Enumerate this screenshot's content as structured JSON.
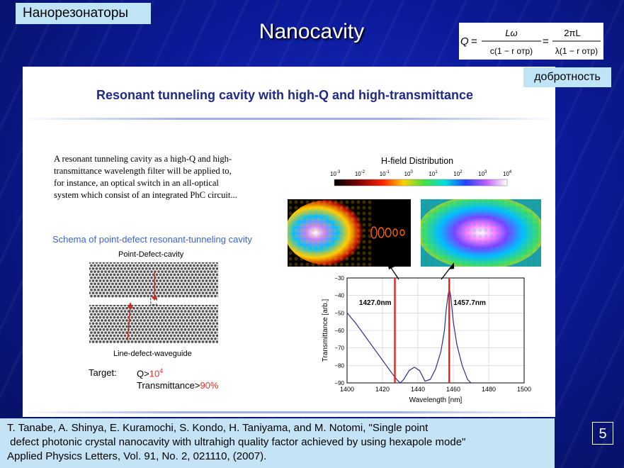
{
  "slide": {
    "label_ru": "Нанорезонаторы",
    "title": "Nanocavity",
    "q_label_ru": "добротность",
    "page_number": "5"
  },
  "formula": {
    "lhs": "Q",
    "frac1_num": "Lω",
    "frac1_den": "c(1 − r отр)",
    "frac2_num": "2πL",
    "frac2_den": "λ(1 − r отр)"
  },
  "panel": {
    "title": "Resonant tunneling cavity with high-Q and high-transmittance",
    "description_lines": [
      "A resonant tunneling cavity as a high-Q and high-",
      "transmittance wavelength filter will be applied to,",
      "for instance, an optical switch in an all-optical",
      "system which consist of an integrated PhC circuit..."
    ],
    "schema_title": "Schema of point-defect resonant-tunneling cavity",
    "point_defect_label": "Point-Defect-cavity",
    "line_defect_label": "Line-defect-waveguide",
    "target_label": "Target:",
    "q_target_prefix": "Q>",
    "q_target_value": "10",
    "q_target_exp": "4",
    "transmittance_prefix": "Transmittance>",
    "transmittance_value": "90%",
    "hfield_title": "H-field Distribution",
    "colorbar_labels": [
      "10",
      "10",
      "10",
      "10",
      "10",
      "10",
      "10",
      "10"
    ],
    "colorbar_exps": [
      "-3",
      "-2",
      "-1",
      "0",
      "1",
      "2",
      "3",
      "4"
    ]
  },
  "chart_data": {
    "type": "line",
    "title": "",
    "xlabel": "Wavelength [nm]",
    "ylabel": "Transmittance [arb.]",
    "xlim": [
      1400,
      1500
    ],
    "ylim": [
      -90,
      -30
    ],
    "xticks": [
      1400,
      1420,
      1440,
      1460,
      1480,
      1500
    ],
    "yticks": [
      -30,
      -40,
      -50,
      -60,
      -70,
      -80,
      -90
    ],
    "series": [
      {
        "x": [
          1400,
          1405,
          1410,
          1415,
          1420,
          1425,
          1428,
          1430,
          1432,
          1435,
          1438,
          1441,
          1444,
          1447,
          1450,
          1453,
          1455,
          1456,
          1457,
          1457.7,
          1458.5,
          1460,
          1462,
          1465,
          1468,
          1470
        ],
        "y": [
          -50,
          -56,
          -63,
          -70,
          -77,
          -84,
          -88,
          -90,
          -88,
          -83,
          -81,
          -83,
          -89,
          -88,
          -82,
          -72,
          -60,
          -48,
          -40,
          -36,
          -40,
          -55,
          -68,
          -80,
          -88,
          -90
        ]
      }
    ],
    "markers": [
      {
        "x": 1427.0,
        "label": "1427.0nm"
      },
      {
        "x": 1457.7,
        "label": "1457.7nm"
      }
    ],
    "colors": {
      "curve": "#2a2f8f",
      "markers": "#e8231f"
    }
  },
  "citation": {
    "lines": [
      "T. Tanabe, A. Shinya, E. Kuramochi, S. Kondo, H. Taniyama, and M. Notomi, \"Single point",
      " defect photonic crystal nanocavity with ultrahigh quality factor achieved by using hexapole mode\"",
      "Applied Physics Letters, Vol. 91, No. 2, 021110, (2007)."
    ]
  }
}
